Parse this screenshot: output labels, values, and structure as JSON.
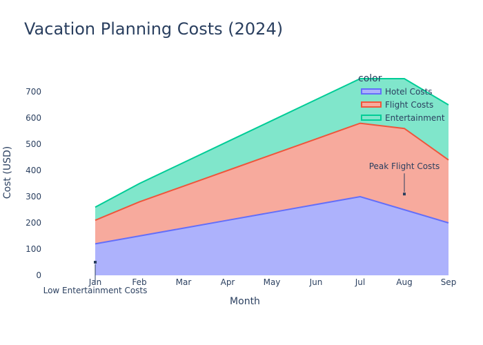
{
  "chart_data": {
    "type": "area",
    "title": "Vacation Planning Costs (2024)",
    "xlabel": "Month",
    "ylabel": "Cost (USD)",
    "categories": [
      "Jan",
      "Feb",
      "Mar",
      "Apr",
      "May",
      "Jun",
      "Jul",
      "Aug",
      "Sep"
    ],
    "ylim": [
      0,
      700
    ],
    "yticks": [
      0,
      100,
      200,
      300,
      400,
      500,
      600,
      700
    ],
    "grid": false,
    "stacked": true,
    "legend": {
      "title": "color",
      "placement": "top-right",
      "entries": [
        "Hotel Costs",
        "Flight Costs",
        "Entertainment"
      ]
    },
    "series": [
      {
        "name": "Hotel Costs",
        "color": "#636efa",
        "fill": "#adb2fc",
        "values": [
          120,
          150,
          180,
          210,
          240,
          270,
          300,
          250,
          200
        ]
      },
      {
        "name": "Flight Costs",
        "color": "#ef553b",
        "fill": "#f7aa9d",
        "values": [
          90,
          130,
          160,
          190,
          220,
          250,
          280,
          310,
          240
        ]
      },
      {
        "name": "Entertainment",
        "color": "#00cc96",
        "fill": "#80e6cb",
        "values": [
          50,
          70,
          90,
          110,
          130,
          150,
          170,
          190,
          210
        ]
      }
    ],
    "annotations": [
      {
        "text": "Peak Flight Costs",
        "x": "Aug",
        "y": 310
      },
      {
        "text": "Low Entertainment Costs",
        "x": "Jan",
        "y": 50
      }
    ]
  }
}
